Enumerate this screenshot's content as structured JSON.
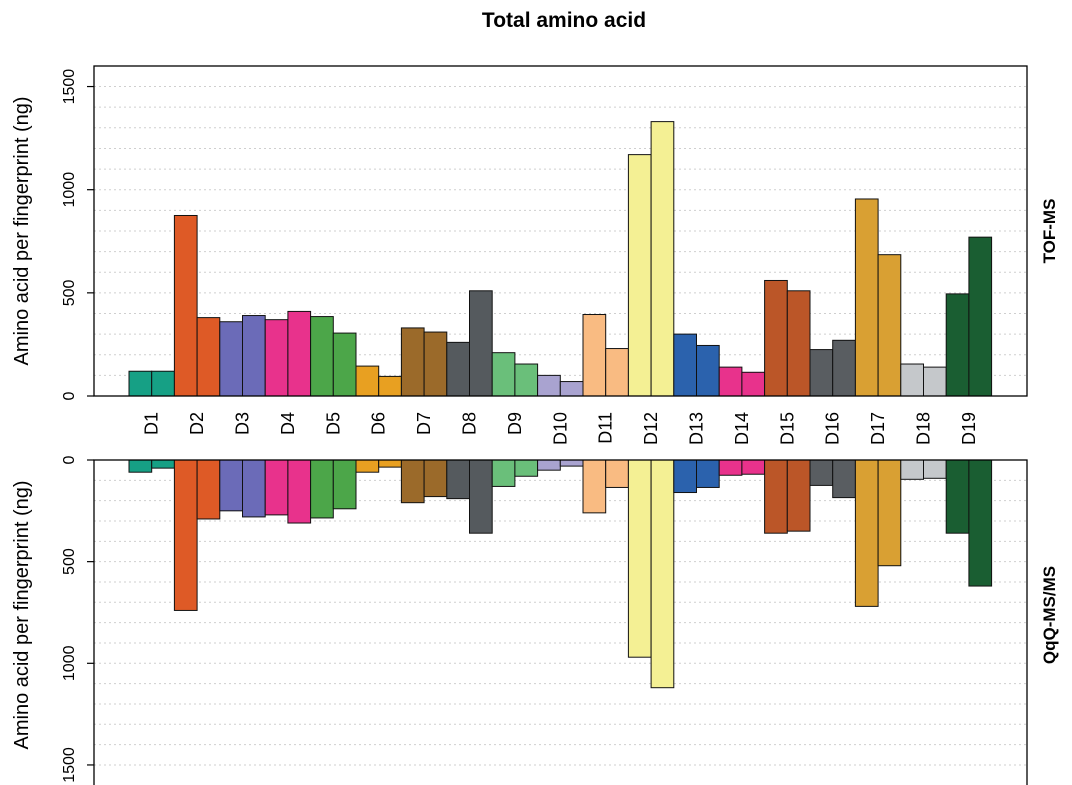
{
  "chart_data": {
    "type": "bar",
    "title": "Total amino acid",
    "categories": [
      "D1",
      "D2",
      "D3",
      "D4",
      "D5",
      "D6",
      "D7",
      "D8",
      "D9",
      "D10",
      "D11",
      "D12",
      "D13",
      "D14",
      "D15",
      "D16",
      "D17",
      "D18",
      "D19"
    ],
    "colors": [
      "#16a085",
      "#de5a26",
      "#6b6bb8",
      "#e8328c",
      "#4ca649",
      "#e8a021",
      "#9b6a2a",
      "#555a5e",
      "#6abf7a",
      "#a9a3d0",
      "#f9bb82",
      "#f4f094",
      "#2b62ad",
      "#e8328c",
      "#bb5628",
      "#595d61",
      "#d9a033",
      "#c5c8cb",
      "#1a5e32"
    ],
    "ylabel": "Amino acid per fingerprint (ng)",
    "yticks": [
      0,
      500,
      1000,
      1500
    ],
    "grid": "horizontal dotted",
    "panels": [
      {
        "label": "TOF-MS",
        "ylim": [
          0,
          1600
        ],
        "direction": "up",
        "values": [
          [
            120,
            120
          ],
          [
            875,
            380
          ],
          [
            360,
            390
          ],
          [
            370,
            410
          ],
          [
            385,
            305
          ],
          [
            145,
            95
          ],
          [
            330,
            310
          ],
          [
            260,
            510
          ],
          [
            210,
            155
          ],
          [
            100,
            70
          ],
          [
            395,
            230
          ],
          [
            1170,
            1330
          ],
          [
            300,
            245
          ],
          [
            140,
            115
          ],
          [
            560,
            510
          ],
          [
            225,
            270
          ],
          [
            955,
            685
          ],
          [
            155,
            140
          ],
          [
            495,
            770
          ]
        ]
      },
      {
        "label": "QqQ-MS/MS",
        "ylim": [
          0,
          1600
        ],
        "direction": "down",
        "values": [
          [
            60,
            40
          ],
          [
            740,
            290
          ],
          [
            250,
            280
          ],
          [
            270,
            310
          ],
          [
            285,
            240
          ],
          [
            60,
            35
          ],
          [
            210,
            180
          ],
          [
            190,
            360
          ],
          [
            130,
            80
          ],
          [
            50,
            30
          ],
          [
            260,
            135
          ],
          [
            970,
            1120
          ],
          [
            160,
            135
          ],
          [
            75,
            70
          ],
          [
            360,
            350
          ],
          [
            125,
            185
          ],
          [
            720,
            520
          ],
          [
            95,
            90
          ],
          [
            360,
            620
          ]
        ]
      }
    ]
  }
}
